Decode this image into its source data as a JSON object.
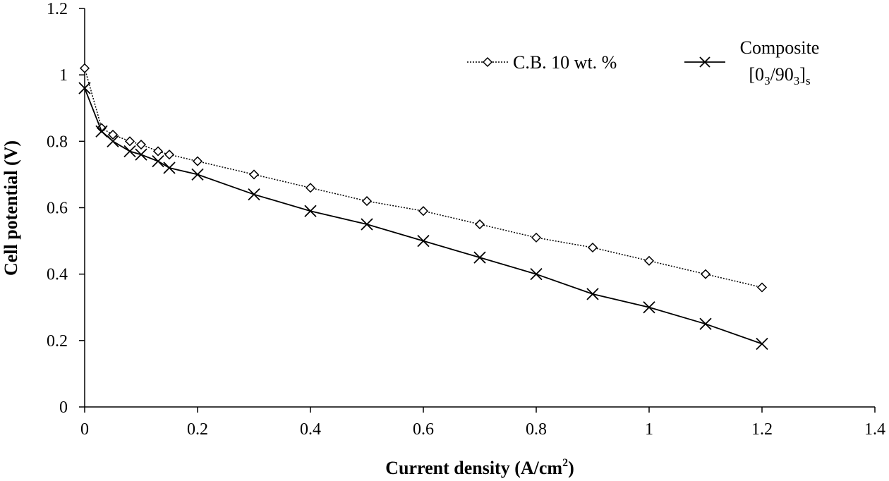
{
  "chart_data": {
    "type": "line",
    "xlabel": "Current density (A/cm",
    "xlabel_sup": "2",
    "xlabel_end": ")",
    "ylabel": "Cell potential (V)",
    "xlim": [
      0,
      1.4
    ],
    "ylim": [
      0,
      1.2
    ],
    "xticks": [
      "0",
      "0.2",
      "0.4",
      "0.6",
      "0.8",
      "1",
      "1.2",
      "1.4"
    ],
    "yticks": [
      "0",
      "0.2",
      "0.4",
      "0.6",
      "0.8",
      "1",
      "1.2"
    ],
    "grid": false,
    "legend_position": "top-right",
    "series": [
      {
        "name": "C.B. 10 wt. %",
        "marker": "diamond",
        "line": "dotted",
        "color": "#000000",
        "x": [
          0,
          0.03,
          0.05,
          0.08,
          0.1,
          0.13,
          0.15,
          0.2,
          0.3,
          0.4,
          0.5,
          0.6,
          0.7,
          0.8,
          0.9,
          1.0,
          1.1,
          1.2
        ],
        "y": [
          1.02,
          0.84,
          0.82,
          0.8,
          0.79,
          0.77,
          0.76,
          0.74,
          0.7,
          0.66,
          0.62,
          0.59,
          0.55,
          0.51,
          0.48,
          0.44,
          0.4,
          0.36
        ]
      },
      {
        "name_line1": "Composite",
        "name_line2_parts": [
          "[0",
          "3",
          "/90",
          "3",
          "]",
          "s"
        ],
        "marker": "x",
        "line": "solid",
        "color": "#000000",
        "x": [
          0,
          0.03,
          0.05,
          0.08,
          0.1,
          0.13,
          0.15,
          0.2,
          0.3,
          0.4,
          0.5,
          0.6,
          0.7,
          0.8,
          0.9,
          1.0,
          1.1,
          1.2
        ],
        "y": [
          0.96,
          0.83,
          0.8,
          0.77,
          0.76,
          0.74,
          0.72,
          0.7,
          0.64,
          0.59,
          0.55,
          0.5,
          0.45,
          0.4,
          0.34,
          0.3,
          0.25,
          0.19
        ]
      }
    ]
  }
}
